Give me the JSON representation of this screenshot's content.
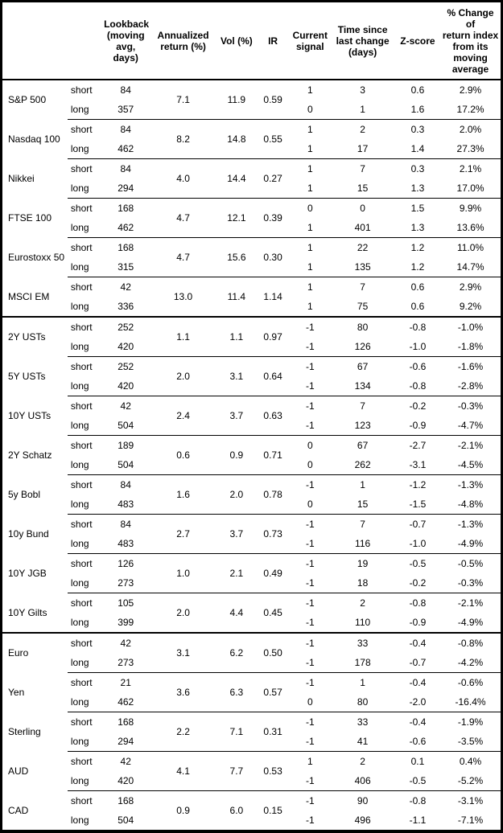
{
  "table": {
    "columns": [
      {
        "id": "asset",
        "label": ""
      },
      {
        "id": "horizon",
        "label": ""
      },
      {
        "id": "lookback",
        "label": "Lookback\n(moving\navg, days)"
      },
      {
        "id": "annualized_return",
        "label": "Annualized\nreturn (%)"
      },
      {
        "id": "vol",
        "label": "Vol (%)"
      },
      {
        "id": "ir",
        "label": "IR"
      },
      {
        "id": "current_signal",
        "label": "Current\nsignal"
      },
      {
        "id": "time_since_change",
        "label": "Time since\nlast change\n(days)"
      },
      {
        "id": "z_score",
        "label": "Z-score"
      },
      {
        "id": "pct_change",
        "label": "% Change of\nreturn index\nfrom its\nmoving\naverage"
      }
    ],
    "groups": [
      {
        "name": "S&P 500",
        "section": "equities",
        "annualized_return": "7.1",
        "vol": "11.9",
        "ir": "0.59",
        "rows": [
          {
            "horizon": "short",
            "lookback": "84",
            "current_signal": "1",
            "time_since_change": "3",
            "z_score": "0.6",
            "pct_change": "2.9%"
          },
          {
            "horizon": "long",
            "lookback": "357",
            "current_signal": "0",
            "time_since_change": "1",
            "z_score": "1.6",
            "pct_change": "17.2%"
          }
        ]
      },
      {
        "name": "Nasdaq 100",
        "section": "equities",
        "annualized_return": "8.2",
        "vol": "14.8",
        "ir": "0.55",
        "rows": [
          {
            "horizon": "short",
            "lookback": "84",
            "current_signal": "1",
            "time_since_change": "2",
            "z_score": "0.3",
            "pct_change": "2.0%"
          },
          {
            "horizon": "long",
            "lookback": "462",
            "current_signal": "1",
            "time_since_change": "17",
            "z_score": "1.4",
            "pct_change": "27.3%"
          }
        ]
      },
      {
        "name": "Nikkei",
        "section": "equities",
        "annualized_return": "4.0",
        "vol": "14.4",
        "ir": "0.27",
        "rows": [
          {
            "horizon": "short",
            "lookback": "84",
            "current_signal": "1",
            "time_since_change": "7",
            "z_score": "0.3",
            "pct_change": "2.1%"
          },
          {
            "horizon": "long",
            "lookback": "294",
            "current_signal": "1",
            "time_since_change": "15",
            "z_score": "1.3",
            "pct_change": "17.0%"
          }
        ]
      },
      {
        "name": "FTSE 100",
        "section": "equities",
        "annualized_return": "4.7",
        "vol": "12.1",
        "ir": "0.39",
        "rows": [
          {
            "horizon": "short",
            "lookback": "168",
            "current_signal": "0",
            "time_since_change": "0",
            "z_score": "1.5",
            "pct_change": "9.9%"
          },
          {
            "horizon": "long",
            "lookback": "462",
            "current_signal": "1",
            "time_since_change": "401",
            "z_score": "1.3",
            "pct_change": "13.6%"
          }
        ]
      },
      {
        "name": "Eurostoxx 50",
        "section": "equities",
        "annualized_return": "4.7",
        "vol": "15.6",
        "ir": "0.30",
        "rows": [
          {
            "horizon": "short",
            "lookback": "168",
            "current_signal": "1",
            "time_since_change": "22",
            "z_score": "1.2",
            "pct_change": "11.0%"
          },
          {
            "horizon": "long",
            "lookback": "315",
            "current_signal": "1",
            "time_since_change": "135",
            "z_score": "1.2",
            "pct_change": "14.7%"
          }
        ]
      },
      {
        "name": "MSCI EM",
        "section": "equities",
        "annualized_return": "13.0",
        "vol": "11.4",
        "ir": "1.14",
        "rows": [
          {
            "horizon": "short",
            "lookback": "42",
            "current_signal": "1",
            "time_since_change": "7",
            "z_score": "0.6",
            "pct_change": "2.9%"
          },
          {
            "horizon": "long",
            "lookback": "336",
            "current_signal": "1",
            "time_since_change": "75",
            "z_score": "0.6",
            "pct_change": "9.2%"
          }
        ]
      },
      {
        "name": "2Y USTs",
        "section": "bonds",
        "annualized_return": "1.1",
        "vol": "1.1",
        "ir": "0.97",
        "rows": [
          {
            "horizon": "short",
            "lookback": "252",
            "current_signal": "-1",
            "time_since_change": "80",
            "z_score": "-0.8",
            "pct_change": "-1.0%"
          },
          {
            "horizon": "long",
            "lookback": "420",
            "current_signal": "-1",
            "time_since_change": "126",
            "z_score": "-1.0",
            "pct_change": "-1.8%"
          }
        ]
      },
      {
        "name": "5Y USTs",
        "section": "bonds",
        "annualized_return": "2.0",
        "vol": "3.1",
        "ir": "0.64",
        "rows": [
          {
            "horizon": "short",
            "lookback": "252",
            "current_signal": "-1",
            "time_since_change": "67",
            "z_score": "-0.6",
            "pct_change": "-1.6%"
          },
          {
            "horizon": "long",
            "lookback": "420",
            "current_signal": "-1",
            "time_since_change": "134",
            "z_score": "-0.8",
            "pct_change": "-2.8%"
          }
        ]
      },
      {
        "name": "10Y USTs",
        "section": "bonds",
        "annualized_return": "2.4",
        "vol": "3.7",
        "ir": "0.63",
        "rows": [
          {
            "horizon": "short",
            "lookback": "42",
            "current_signal": "-1",
            "time_since_change": "7",
            "z_score": "-0.2",
            "pct_change": "-0.3%"
          },
          {
            "horizon": "long",
            "lookback": "504",
            "current_signal": "-1",
            "time_since_change": "123",
            "z_score": "-0.9",
            "pct_change": "-4.7%"
          }
        ]
      },
      {
        "name": "2Y Schatz",
        "section": "bonds",
        "annualized_return": "0.6",
        "vol": "0.9",
        "ir": "0.71",
        "rows": [
          {
            "horizon": "short",
            "lookback": "189",
            "current_signal": "0",
            "time_since_change": "67",
            "z_score": "-2.7",
            "pct_change": "-2.1%"
          },
          {
            "horizon": "long",
            "lookback": "504",
            "current_signal": "0",
            "time_since_change": "262",
            "z_score": "-3.1",
            "pct_change": "-4.5%"
          }
        ]
      },
      {
        "name": "5y Bobl",
        "section": "bonds",
        "annualized_return": "1.6",
        "vol": "2.0",
        "ir": "0.78",
        "rows": [
          {
            "horizon": "short",
            "lookback": "84",
            "current_signal": "-1",
            "time_since_change": "1",
            "z_score": "-1.2",
            "pct_change": "-1.3%"
          },
          {
            "horizon": "long",
            "lookback": "483",
            "current_signal": "0",
            "time_since_change": "15",
            "z_score": "-1.5",
            "pct_change": "-4.8%"
          }
        ]
      },
      {
        "name": "10y Bund",
        "section": "bonds",
        "annualized_return": "2.7",
        "vol": "3.7",
        "ir": "0.73",
        "rows": [
          {
            "horizon": "short",
            "lookback": "84",
            "current_signal": "-1",
            "time_since_change": "7",
            "z_score": "-0.7",
            "pct_change": "-1.3%"
          },
          {
            "horizon": "long",
            "lookback": "483",
            "current_signal": "-1",
            "time_since_change": "116",
            "z_score": "-1.0",
            "pct_change": "-4.9%"
          }
        ]
      },
      {
        "name": "10Y JGB",
        "section": "bonds",
        "annualized_return": "1.0",
        "vol": "2.1",
        "ir": "0.49",
        "rows": [
          {
            "horizon": "short",
            "lookback": "126",
            "current_signal": "-1",
            "time_since_change": "19",
            "z_score": "-0.5",
            "pct_change": "-0.5%"
          },
          {
            "horizon": "long",
            "lookback": "273",
            "current_signal": "-1",
            "time_since_change": "18",
            "z_score": "-0.2",
            "pct_change": "-0.3%"
          }
        ]
      },
      {
        "name": "10Y Gilts",
        "section": "bonds",
        "annualized_return": "2.0",
        "vol": "4.4",
        "ir": "0.45",
        "rows": [
          {
            "horizon": "short",
            "lookback": "105",
            "current_signal": "-1",
            "time_since_change": "2",
            "z_score": "-0.8",
            "pct_change": "-2.1%"
          },
          {
            "horizon": "long",
            "lookback": "399",
            "current_signal": "-1",
            "time_since_change": "110",
            "z_score": "-0.9",
            "pct_change": "-4.9%"
          }
        ]
      },
      {
        "name": "Euro",
        "section": "fx",
        "annualized_return": "3.1",
        "vol": "6.2",
        "ir": "0.50",
        "rows": [
          {
            "horizon": "short",
            "lookback": "42",
            "current_signal": "-1",
            "time_since_change": "33",
            "z_score": "-0.4",
            "pct_change": "-0.8%"
          },
          {
            "horizon": "long",
            "lookback": "273",
            "current_signal": "-1",
            "time_since_change": "178",
            "z_score": "-0.7",
            "pct_change": "-4.2%"
          }
        ]
      },
      {
        "name": "Yen",
        "section": "fx",
        "annualized_return": "3.6",
        "vol": "6.3",
        "ir": "0.57",
        "rows": [
          {
            "horizon": "short",
            "lookback": "21",
            "current_signal": "-1",
            "time_since_change": "1",
            "z_score": "-0.4",
            "pct_change": "-0.6%"
          },
          {
            "horizon": "long",
            "lookback": "462",
            "current_signal": "0",
            "time_since_change": "80",
            "z_score": "-2.0",
            "pct_change": "-16.4%"
          }
        ]
      },
      {
        "name": "Sterling",
        "section": "fx",
        "annualized_return": "2.2",
        "vol": "7.1",
        "ir": "0.31",
        "rows": [
          {
            "horizon": "short",
            "lookback": "168",
            "current_signal": "-1",
            "time_since_change": "33",
            "z_score": "-0.4",
            "pct_change": "-1.9%"
          },
          {
            "horizon": "long",
            "lookback": "294",
            "current_signal": "-1",
            "time_since_change": "41",
            "z_score": "-0.6",
            "pct_change": "-3.5%"
          }
        ]
      },
      {
        "name": "AUD",
        "section": "fx",
        "annualized_return": "4.1",
        "vol": "7.7",
        "ir": "0.53",
        "rows": [
          {
            "horizon": "short",
            "lookback": "42",
            "current_signal": "1",
            "time_since_change": "2",
            "z_score": "0.1",
            "pct_change": "0.4%"
          },
          {
            "horizon": "long",
            "lookback": "420",
            "current_signal": "-1",
            "time_since_change": "406",
            "z_score": "-0.5",
            "pct_change": "-5.2%"
          }
        ]
      },
      {
        "name": "CAD",
        "section": "fx",
        "annualized_return": "0.9",
        "vol": "6.0",
        "ir": "0.15",
        "rows": [
          {
            "horizon": "short",
            "lookback": "168",
            "current_signal": "-1",
            "time_since_change": "90",
            "z_score": "-0.8",
            "pct_change": "-3.1%"
          },
          {
            "horizon": "long",
            "lookback": "504",
            "current_signal": "-1",
            "time_since_change": "496",
            "z_score": "-1.1",
            "pct_change": "-7.1%"
          }
        ]
      }
    ]
  }
}
